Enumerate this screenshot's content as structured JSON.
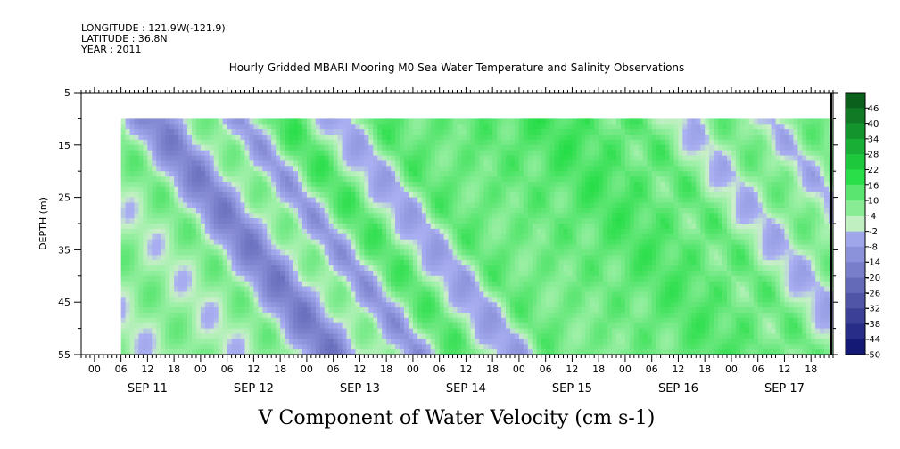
{
  "header": {
    "longitude": "LONGITUDE : 121.9W(-121.9)",
    "latitude": "LATITUDE : 36.8N",
    "year": "YEAR : 2011"
  },
  "chart_data": {
    "type": "heatmap",
    "title": "Hourly Gridded MBARI Mooring M0 Sea Water Temperature and Salinity Observations",
    "xlabel": "V Component of Water Velocity (cm s-1)",
    "ylabel": "DEPTH (m)",
    "x_start": "2011-09-10T21:00",
    "x_end": "2011-09-17T23:00",
    "data_start": "2011-09-11T06:00",
    "data_end": "2011-09-17T23:00",
    "ylim": [
      55,
      5
    ],
    "y_ticks": [
      5,
      15,
      25,
      35,
      45,
      55
    ],
    "y_minor_ticks": [
      10,
      20,
      30,
      40,
      50
    ],
    "data_depth_range": [
      10,
      55
    ],
    "hour_tick_labels": [
      "00",
      "06",
      "12",
      "18"
    ],
    "day_labels": [
      "SEP 11",
      "SEP 12",
      "SEP 13",
      "SEP 14",
      "SEP 15",
      "SEP 16",
      "SEP 17"
    ],
    "colorbar": {
      "levels": [
        -50,
        -44,
        -38,
        -32,
        -26,
        -20,
        -14,
        -8,
        -2,
        4,
        10,
        16,
        22,
        28,
        34,
        40,
        46
      ],
      "labels": [
        "46",
        "40",
        "34",
        "28",
        "22",
        "16",
        "10",
        "4",
        "-2",
        "-8",
        "-14",
        "-20",
        "-26",
        "-32",
        "-38",
        "-44",
        "-50"
      ]
    },
    "profile_hours": [
      6,
      12,
      18,
      24,
      30,
      36,
      42,
      48,
      54,
      60,
      66,
      72,
      78,
      84,
      90,
      96,
      102,
      108,
      114,
      120,
      126,
      132,
      138,
      144,
      150,
      156,
      162,
      168
    ],
    "profile_values": [
      6,
      -6,
      -14,
      0,
      9,
      -7,
      8,
      14,
      3,
      -8,
      12,
      16,
      10,
      4,
      18,
      13,
      11,
      16,
      20,
      2,
      14,
      6,
      -6,
      8,
      12,
      -6,
      7,
      10
    ],
    "colors": {
      "neg_strong": "#0a0f6e",
      "neg_light": "#aab0f2",
      "zero": "#cbeecb",
      "pos_light": "#9ff0a8",
      "pos_mid": "#22dd44",
      "pos_strong": "#0a5c1a"
    }
  }
}
